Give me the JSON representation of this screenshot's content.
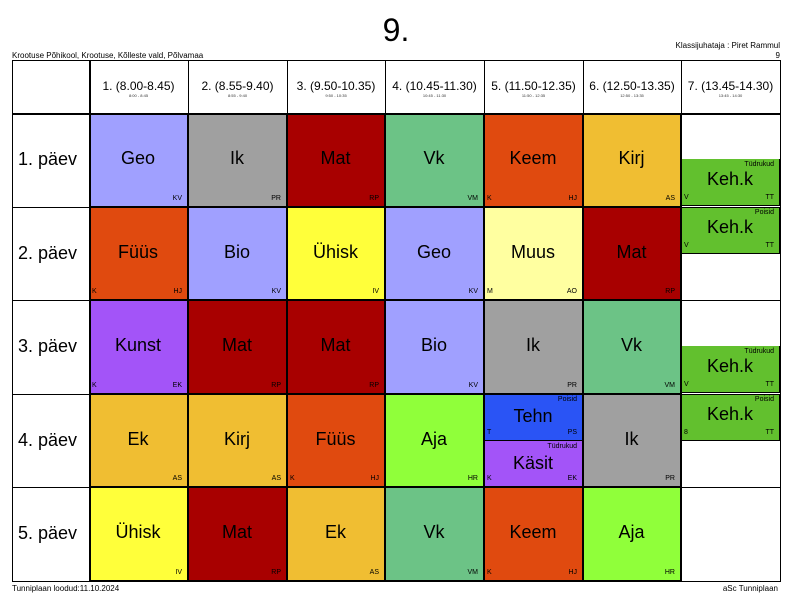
{
  "title": "9.",
  "school": "Krootuse Põhikool, Krootuse, Kõlleste vald, Põlvamaa",
  "teacher": "Klassijuhataja : Piret Rammul",
  "teacher_sub": "9",
  "footer_left": "Tunniplaan loodud:11.10.2024",
  "footer_right": "aSc Tunniplaan",
  "periods": [
    {
      "label": "1. (8.00-8.45)",
      "time": "8:00 - 8:45"
    },
    {
      "label": "2. (8.55-9.40)",
      "time": "8:55 - 9:40"
    },
    {
      "label": "3. (9.50-10.35)",
      "time": "9:50 - 10:35"
    },
    {
      "label": "4. (10.45-11.30)",
      "time": "10:45 - 11:30"
    },
    {
      "label": "5. (11.50-12.35)",
      "time": "11:50 - 12:35"
    },
    {
      "label": "6. (12.50-13.35)",
      "time": "12:50 - 13:35"
    },
    {
      "label": "7. (13.45-14.30)",
      "time": "13:45 - 14:30"
    }
  ],
  "days": [
    "1. päev",
    "2. päev",
    "3. päev",
    "4. päev",
    "5. päev"
  ],
  "colors": {
    "Geo": "#a0a0ff",
    "Ik": "#a0a0a0",
    "Mat": "#a80000",
    "Vk": "#6cc386",
    "Keem": "#e04a0f",
    "Kirj": "#f0be32",
    "Keh.k": "#62c02e",
    "Füüs": "#e04a0f",
    "Bio": "#a0a0ff",
    "Ühisk": "#ffff3a",
    "Muus": "#ffffa0",
    "Kunst": "#a354f8",
    "Ek": "#f0be32",
    "Aja": "#90ff3a",
    "Tehn": "#2a54f5",
    "Käsit": "#a354f8"
  },
  "lessons": {
    "d1_p1": {
      "subject": "Geo",
      "left": "",
      "right": "KV"
    },
    "d1_p2": {
      "subject": "Ik",
      "left": "",
      "right": "PR"
    },
    "d1_p3": {
      "subject": "Mat",
      "left": "",
      "right": "RP"
    },
    "d1_p4": {
      "subject": "Vk",
      "left": "",
      "right": "VM"
    },
    "d1_p5": {
      "subject": "Keem",
      "left": "K",
      "right": "HJ"
    },
    "d1_p6": {
      "subject": "Kirj",
      "left": "",
      "right": "AS"
    },
    "d1_p7": {
      "subject": "Keh.k",
      "group": "Tüdrukud",
      "left": "V",
      "right": "TT"
    },
    "d2_p1": {
      "subject": "Füüs",
      "left": "K",
      "right": "HJ"
    },
    "d2_p2": {
      "subject": "Bio",
      "left": "",
      "right": "KV"
    },
    "d2_p3": {
      "subject": "Ühisk",
      "left": "",
      "right": "IV"
    },
    "d2_p4": {
      "subject": "Geo",
      "left": "",
      "right": "KV"
    },
    "d2_p5": {
      "subject": "Muus",
      "left": "M",
      "right": "AO"
    },
    "d2_p6": {
      "subject": "Mat",
      "left": "",
      "right": "RP"
    },
    "d2_p7": {
      "subject": "Keh.k",
      "group": "Poisid",
      "left": "V",
      "right": "TT"
    },
    "d3_p1": {
      "subject": "Kunst",
      "left": "K",
      "right": "EK"
    },
    "d3_p2": {
      "subject": "Mat",
      "left": "",
      "right": "RP"
    },
    "d3_p3": {
      "subject": "Mat",
      "left": "",
      "right": "RP"
    },
    "d3_p4": {
      "subject": "Bio",
      "left": "",
      "right": "KV"
    },
    "d3_p5": {
      "subject": "Ik",
      "left": "",
      "right": "PR"
    },
    "d3_p6": {
      "subject": "Vk",
      "left": "",
      "right": "VM"
    },
    "d3_p7": {
      "subject": "Keh.k",
      "group": "Tüdrukud",
      "left": "V",
      "right": "TT"
    },
    "d4_p1": {
      "subject": "Ek",
      "left": "",
      "right": "AS"
    },
    "d4_p2": {
      "subject": "Kirj",
      "left": "",
      "right": "AS"
    },
    "d4_p3": {
      "subject": "Füüs",
      "left": "K",
      "right": "HJ"
    },
    "d4_p4": {
      "subject": "Aja",
      "left": "",
      "right": "HR"
    },
    "d4_p5a": {
      "subject": "Tehn",
      "group": "Poisid",
      "left": "T",
      "right": "PS"
    },
    "d4_p5b": {
      "subject": "Käsit",
      "group": "Tüdrukud",
      "left": "K",
      "right": "EK"
    },
    "d4_p6": {
      "subject": "Ik",
      "left": "",
      "right": "PR"
    },
    "d4_p7": {
      "subject": "Keh.k",
      "group": "Poisid",
      "left": "8",
      "right": "TT"
    },
    "d5_p1": {
      "subject": "Ühisk",
      "left": "",
      "right": "IV"
    },
    "d5_p2": {
      "subject": "Mat",
      "left": "",
      "right": "RP"
    },
    "d5_p3": {
      "subject": "Ek",
      "left": "",
      "right": "AS"
    },
    "d5_p4": {
      "subject": "Vk",
      "left": "",
      "right": "VM"
    },
    "d5_p5": {
      "subject": "Keem",
      "left": "K",
      "right": "HJ"
    },
    "d5_p6": {
      "subject": "Aja",
      "left": "",
      "right": "HR"
    }
  }
}
